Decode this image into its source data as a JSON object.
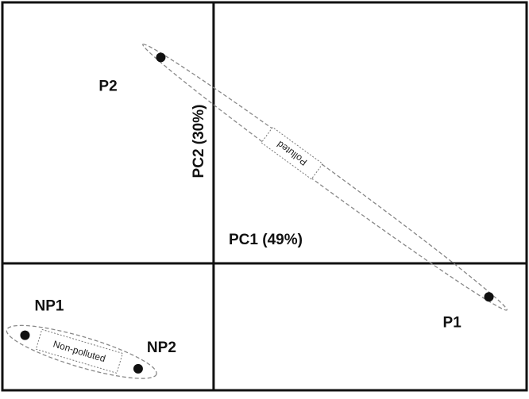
{
  "chart_data": {
    "type": "scatter",
    "title": "",
    "xlabel": "PC1 (49%)",
    "ylabel": "PC2 (30%)",
    "xlim": [
      -0.56,
      0.83
    ],
    "ylim": [
      -0.53,
      1.09
    ],
    "grid": false,
    "legend": "none",
    "points": [
      {
        "label": "P1",
        "x": 0.73,
        "y": -0.14
      },
      {
        "label": "P2",
        "x": -0.14,
        "y": 0.86
      },
      {
        "label": "NP1",
        "x": -0.5,
        "y": -0.3
      },
      {
        "label": "NP2",
        "x": -0.2,
        "y": -0.44
      }
    ],
    "groups": [
      {
        "label": "Polluted",
        "members": [
          "P1",
          "P2"
        ]
      },
      {
        "label": "Non-polluted",
        "members": [
          "NP1",
          "NP2"
        ]
      }
    ],
    "colors": {
      "points": "#111111",
      "axes": "#111111",
      "ellipse": "#888888"
    }
  }
}
